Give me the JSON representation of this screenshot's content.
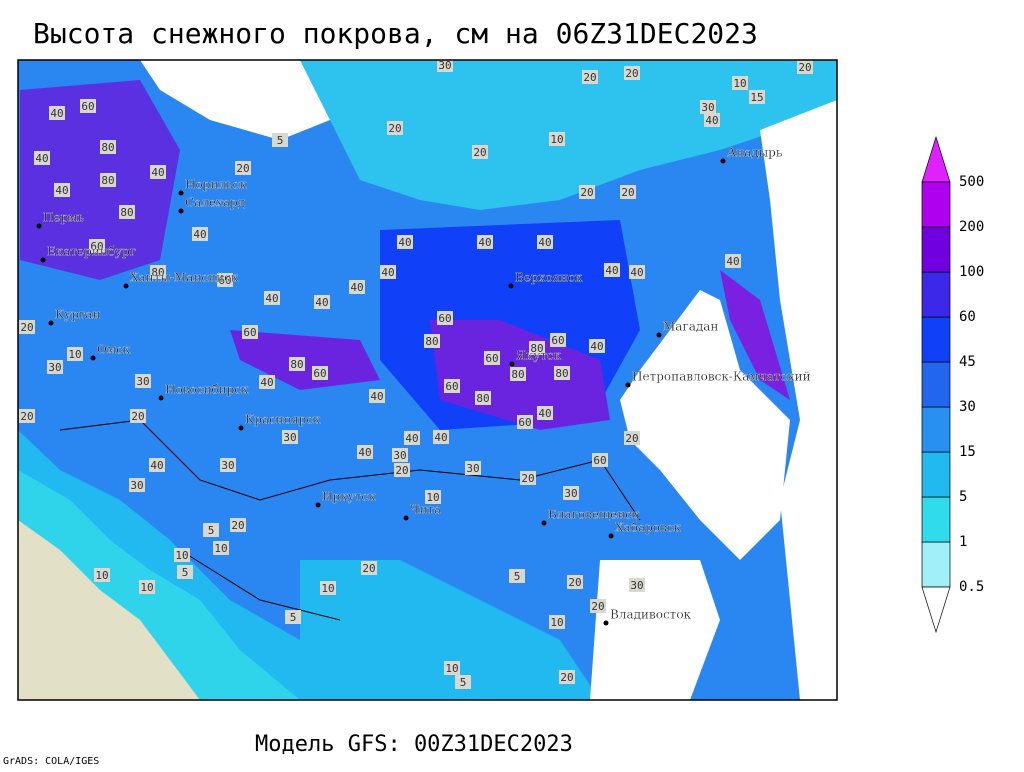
{
  "title": "Высота снежного покрова, см на 06Z31DEC2023",
  "model": "Модель GFS: 00Z31DEC2023",
  "credit": "GrADS: COLA/IGES",
  "cities": [
    "Норильск",
    "Салехард",
    "Пермь",
    "Екатеринбург",
    "Ханты-Мансийск",
    "Курган",
    "Омск",
    "Новосибирск",
    "Красноярск",
    "Иркутск",
    "Чита",
    "Благовещенск",
    "Хабаровск",
    "Владивосток",
    "Верхоянск",
    "Якутск",
    "Магадан",
    "Петропавловск-Камчатский",
    "Анадырь"
  ],
  "contour_labels": [
    30,
    20,
    20,
    20,
    10,
    15,
    30,
    40,
    40,
    60,
    5,
    20,
    20,
    10,
    40,
    80,
    40,
    80,
    20,
    40,
    80,
    20,
    20,
    60,
    40,
    40,
    40,
    40,
    80,
    40,
    40,
    40,
    40,
    60,
    40,
    40,
    40,
    20,
    10,
    60,
    60,
    80,
    80,
    60,
    40,
    30,
    30,
    80,
    60,
    60,
    80,
    80,
    40,
    40,
    20,
    20,
    60,
    80,
    60,
    40,
    30,
    40,
    40,
    40,
    20,
    40,
    30,
    30,
    30,
    20,
    30,
    20,
    10,
    30,
    5,
    20,
    10,
    10,
    5,
    10,
    20,
    5,
    20,
    30,
    10,
    10,
    20,
    5,
    10,
    10,
    20,
    5,
    60
  ],
  "legend": {
    "levels": [
      0.5,
      1,
      5,
      15,
      30,
      45,
      60,
      100,
      200,
      500
    ],
    "colors": [
      "#ffffff",
      "#a0f0fa",
      "#30dcec",
      "#22b8f0",
      "#2890f0",
      "#2266f0",
      "#1040f8",
      "#3c28e8",
      "#7000e0",
      "#b000f0",
      "#e020ff"
    ]
  }
}
